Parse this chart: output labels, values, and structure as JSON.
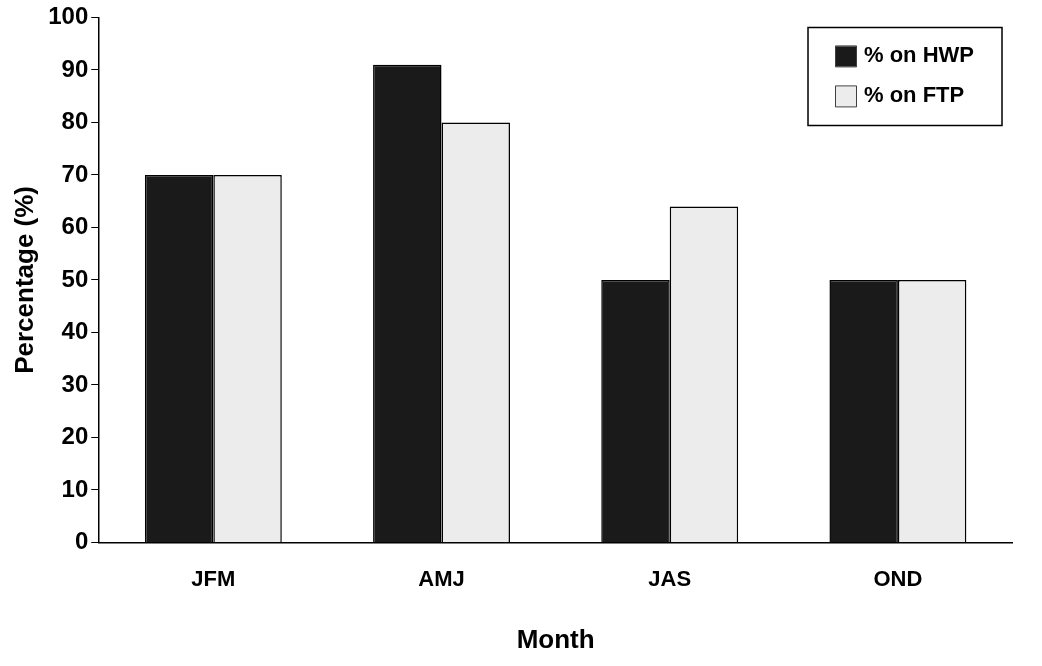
{
  "chart_data": {
    "type": "bar",
    "xlabel": "Month",
    "ylabel": "Percentage (%)",
    "categories": [
      "JFM",
      "AMJ",
      "JAS",
      "OND"
    ],
    "series": [
      {
        "name": "% on HWP",
        "color": "#1a1a1a",
        "values": [
          70,
          91,
          50,
          50
        ]
      },
      {
        "name": "% on FTP",
        "color": "#ececec",
        "values": [
          70,
          80,
          64,
          50
        ]
      }
    ],
    "ylim": [
      0,
      100
    ],
    "yticks": [
      0,
      10,
      20,
      30,
      40,
      50,
      60,
      70,
      80,
      90,
      100
    ],
    "grid": false,
    "legend": "top right"
  }
}
